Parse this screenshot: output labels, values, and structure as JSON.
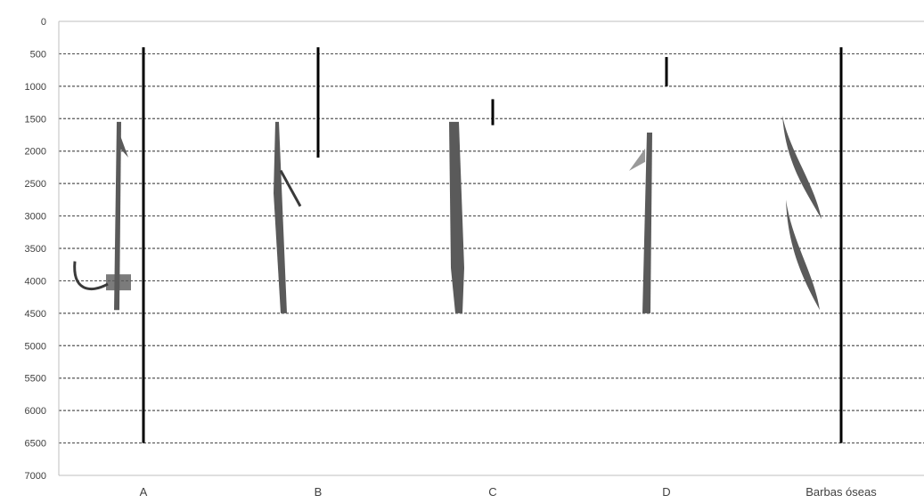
{
  "chart_data": {
    "type": "range-bar",
    "title": "",
    "xlabel": "",
    "ylabel": "",
    "ylim": [
      0,
      7000
    ],
    "y_axis_inverted": true,
    "y_ticks": [
      0,
      500,
      1000,
      1500,
      2000,
      2500,
      3000,
      3500,
      4000,
      4500,
      5000,
      5500,
      6000,
      6500,
      7000
    ],
    "grid": true,
    "grid_style": "dashed",
    "legend": "none",
    "categories": [
      "A",
      "B",
      "C",
      "D",
      "Barbas óseas"
    ],
    "ranges": [
      {
        "category": "A",
        "start": 400,
        "end": 6500
      },
      {
        "category": "B",
        "start": 400,
        "end": 2100
      },
      {
        "category": "C",
        "start": 1200,
        "end": 1600
      },
      {
        "category": "D",
        "start": 550,
        "end": 1000
      },
      {
        "category": "Barbas óseas",
        "start": 400,
        "end": 6500
      }
    ],
    "artifact_images": [
      {
        "category": "A",
        "description": "harpoon",
        "top": 1550,
        "bottom": 4450
      },
      {
        "category": "B",
        "description": "harpoon",
        "top": 1550,
        "bottom": 4500
      },
      {
        "category": "C",
        "description": "harpoon",
        "top": 1550,
        "bottom": 4500
      },
      {
        "category": "D",
        "description": "harpoon",
        "top": 1550,
        "bottom": 4500
      },
      {
        "category": "Barbas óseas",
        "description": "bone barbs",
        "top": 1450,
        "bottom": 4500
      }
    ],
    "colors": {
      "bar": "#000000",
      "grid": "#555555",
      "axis": "#bfbfbf",
      "artifact": "#5a5a5a"
    }
  }
}
